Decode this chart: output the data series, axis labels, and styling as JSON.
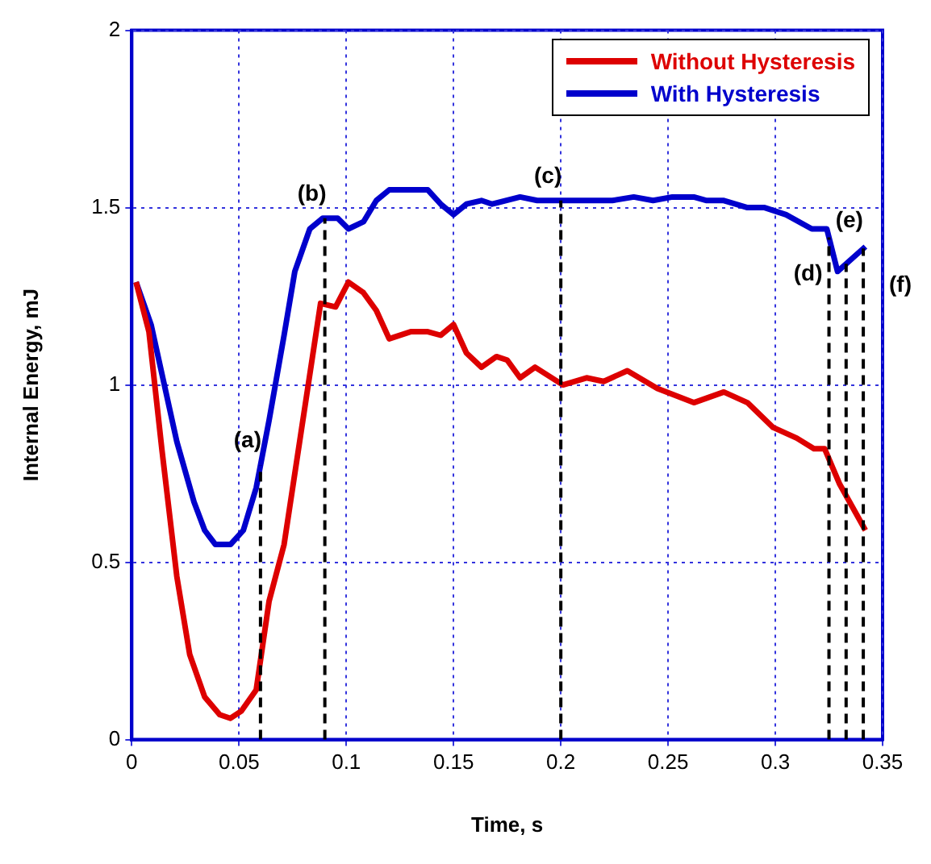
{
  "chart_data": {
    "type": "line",
    "xlabel": "Time, s",
    "ylabel": "Internal Energy, mJ",
    "xlim": [
      0,
      0.35
    ],
    "xticks": [
      0,
      0.05,
      0.1,
      0.15,
      0.2,
      0.25,
      0.3,
      0.35
    ],
    "ylim": [
      0,
      2
    ],
    "yticks": [
      0,
      0.5,
      1,
      1.5,
      2
    ],
    "grid": true,
    "legend": "top right",
    "marker": "none",
    "line_style": "solid",
    "series": [
      {
        "name": "Without Hysteresis",
        "color": "#dd0000",
        "x": [
          0.002,
          0.008,
          0.014,
          0.021,
          0.027,
          0.034,
          0.041,
          0.046,
          0.051,
          0.058,
          0.064,
          0.071,
          0.079,
          0.088,
          0.095,
          0.101,
          0.108,
          0.114,
          0.12,
          0.13,
          0.138,
          0.144,
          0.15,
          0.156,
          0.163,
          0.17,
          0.175,
          0.181,
          0.188,
          0.201,
          0.212,
          0.22,
          0.231,
          0.245,
          0.262,
          0.276,
          0.287,
          0.299,
          0.31,
          0.318,
          0.323,
          0.33,
          0.342
        ],
        "values": [
          1.29,
          1.15,
          0.82,
          0.46,
          0.24,
          0.12,
          0.07,
          0.06,
          0.08,
          0.14,
          0.39,
          0.55,
          0.87,
          1.23,
          1.22,
          1.29,
          1.26,
          1.21,
          1.13,
          1.15,
          1.15,
          1.14,
          1.17,
          1.09,
          1.05,
          1.08,
          1.07,
          1.02,
          1.05,
          1.0,
          1.02,
          1.01,
          1.04,
          0.99,
          0.95,
          0.98,
          0.95,
          0.88,
          0.85,
          0.82,
          0.82,
          0.72,
          0.59
        ]
      },
      {
        "name": "With Hysteresis",
        "color": "#0000cc",
        "x": [
          0.002,
          0.009,
          0.021,
          0.029,
          0.034,
          0.039,
          0.046,
          0.052,
          0.058,
          0.064,
          0.071,
          0.076,
          0.083,
          0.089,
          0.096,
          0.101,
          0.108,
          0.114,
          0.12,
          0.131,
          0.138,
          0.144,
          0.15,
          0.156,
          0.163,
          0.168,
          0.181,
          0.189,
          0.197,
          0.202,
          0.208,
          0.224,
          0.234,
          0.243,
          0.252,
          0.262,
          0.268,
          0.276,
          0.287,
          0.295,
          0.305,
          0.317,
          0.324,
          0.329,
          0.342
        ],
        "values": [
          1.29,
          1.17,
          0.84,
          0.67,
          0.59,
          0.55,
          0.55,
          0.59,
          0.71,
          0.9,
          1.14,
          1.32,
          1.44,
          1.47,
          1.47,
          1.44,
          1.46,
          1.52,
          1.55,
          1.55,
          1.55,
          1.51,
          1.48,
          1.51,
          1.52,
          1.51,
          1.53,
          1.52,
          1.52,
          1.52,
          1.52,
          1.52,
          1.53,
          1.52,
          1.53,
          1.53,
          1.52,
          1.52,
          1.5,
          1.5,
          1.48,
          1.44,
          1.44,
          1.32,
          1.39
        ]
      }
    ],
    "ref_lines": [
      {
        "axis": "x",
        "value": 0.06,
        "label": "(a)",
        "color": "#000000",
        "line_style": "dashed"
      },
      {
        "axis": "x",
        "value": 0.09,
        "label": "(b)",
        "color": "#000000",
        "line_style": "dashed"
      },
      {
        "axis": "x",
        "value": 0.2,
        "label": "(c)",
        "color": "#000000",
        "line_style": "dashed"
      },
      {
        "axis": "x",
        "value": 0.325,
        "label": "(d)",
        "color": "#000000",
        "line_style": "dashed"
      },
      {
        "axis": "x",
        "value": 0.333,
        "label": "(e)",
        "color": "#000000",
        "line_style": "dashed"
      },
      {
        "axis": "x",
        "value": 0.341,
        "label": "(f)",
        "color": "#000000",
        "line_style": "dashed"
      }
    ]
  }
}
